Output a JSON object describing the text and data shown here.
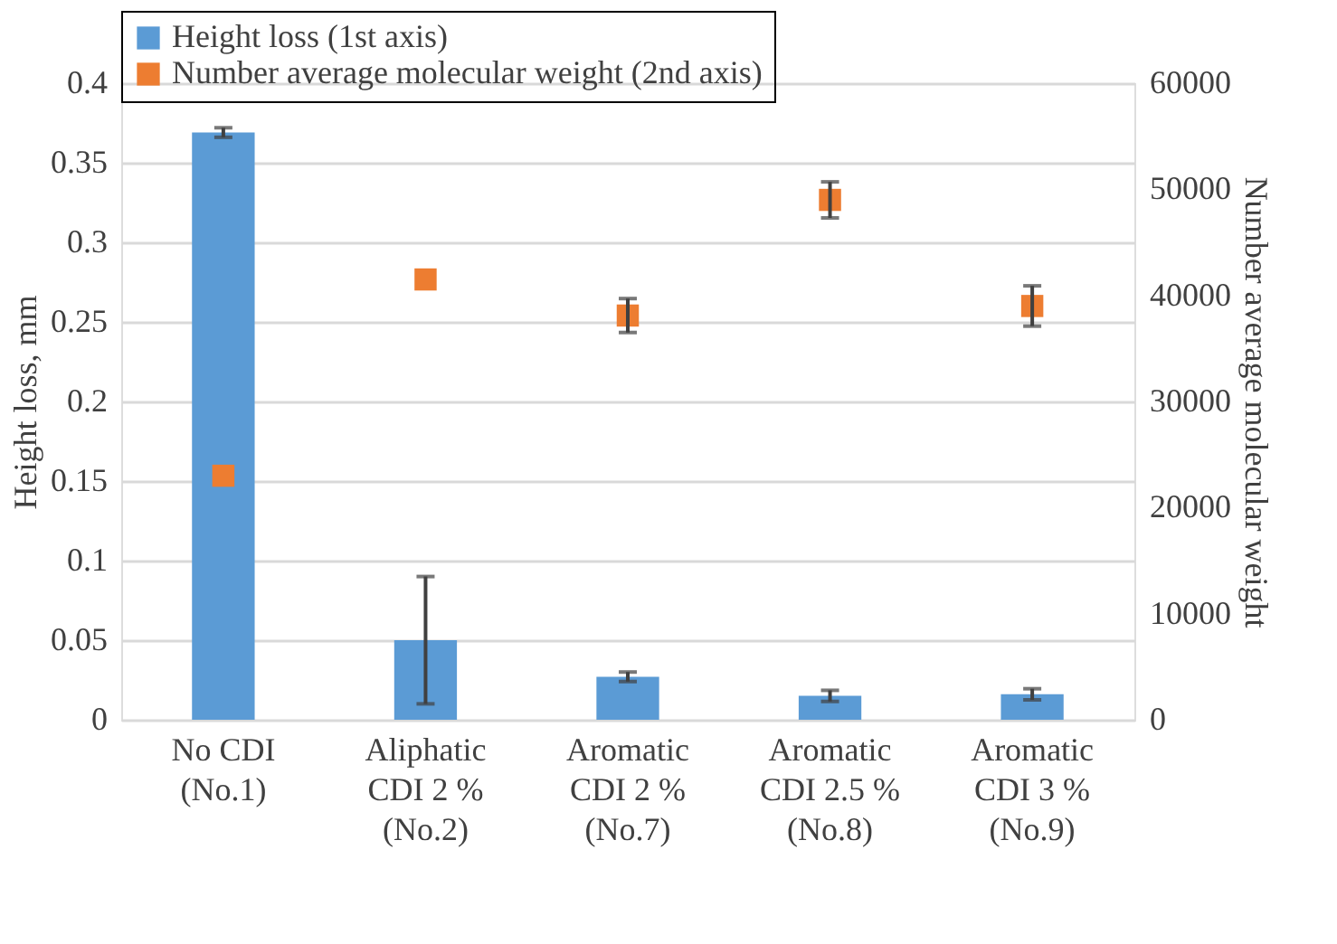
{
  "chart_data": {
    "type": "bar",
    "categories": [
      "No CDI\n(No.1)",
      "Aliphatic\nCDI 2 %\n(No.2)",
      "Aromatic\nCDI 2 %\n(No.7)",
      "Aromatic\nCDI 2.5 %\n(No.8)",
      "Aromatic\nCDI 3 %\n(No.9)"
    ],
    "ylabel": "Height loss, mm",
    "y2label": "Number average molecular weight",
    "ylim": [
      0,
      0.4
    ],
    "yticks": [
      0,
      0.05,
      0.1,
      0.15,
      0.2,
      0.25,
      0.3,
      0.35,
      0.4
    ],
    "y2lim": [
      0,
      60000
    ],
    "y2ticks": [
      0,
      10000,
      20000,
      30000,
      40000,
      50000,
      60000
    ],
    "series": [
      {
        "name": "Height loss (1st axis)",
        "axis": "y",
        "color": "#5b9bd5",
        "values": [
          0.369,
          0.05,
          0.027,
          0.015,
          0.016
        ],
        "errors": [
          0.003,
          0.04,
          0.003,
          0.0035,
          0.0035
        ]
      },
      {
        "name": "Number average molecular weight (2nd axis)",
        "type": "scatter",
        "axis": "y2",
        "marker": "square",
        "color": "#ed7d31",
        "values": [
          23000,
          41500,
          38100,
          49000,
          39000
        ],
        "errors": [
          null,
          null,
          1600,
          1700,
          1900
        ]
      }
    ],
    "grid": "y",
    "legend": "top"
  }
}
